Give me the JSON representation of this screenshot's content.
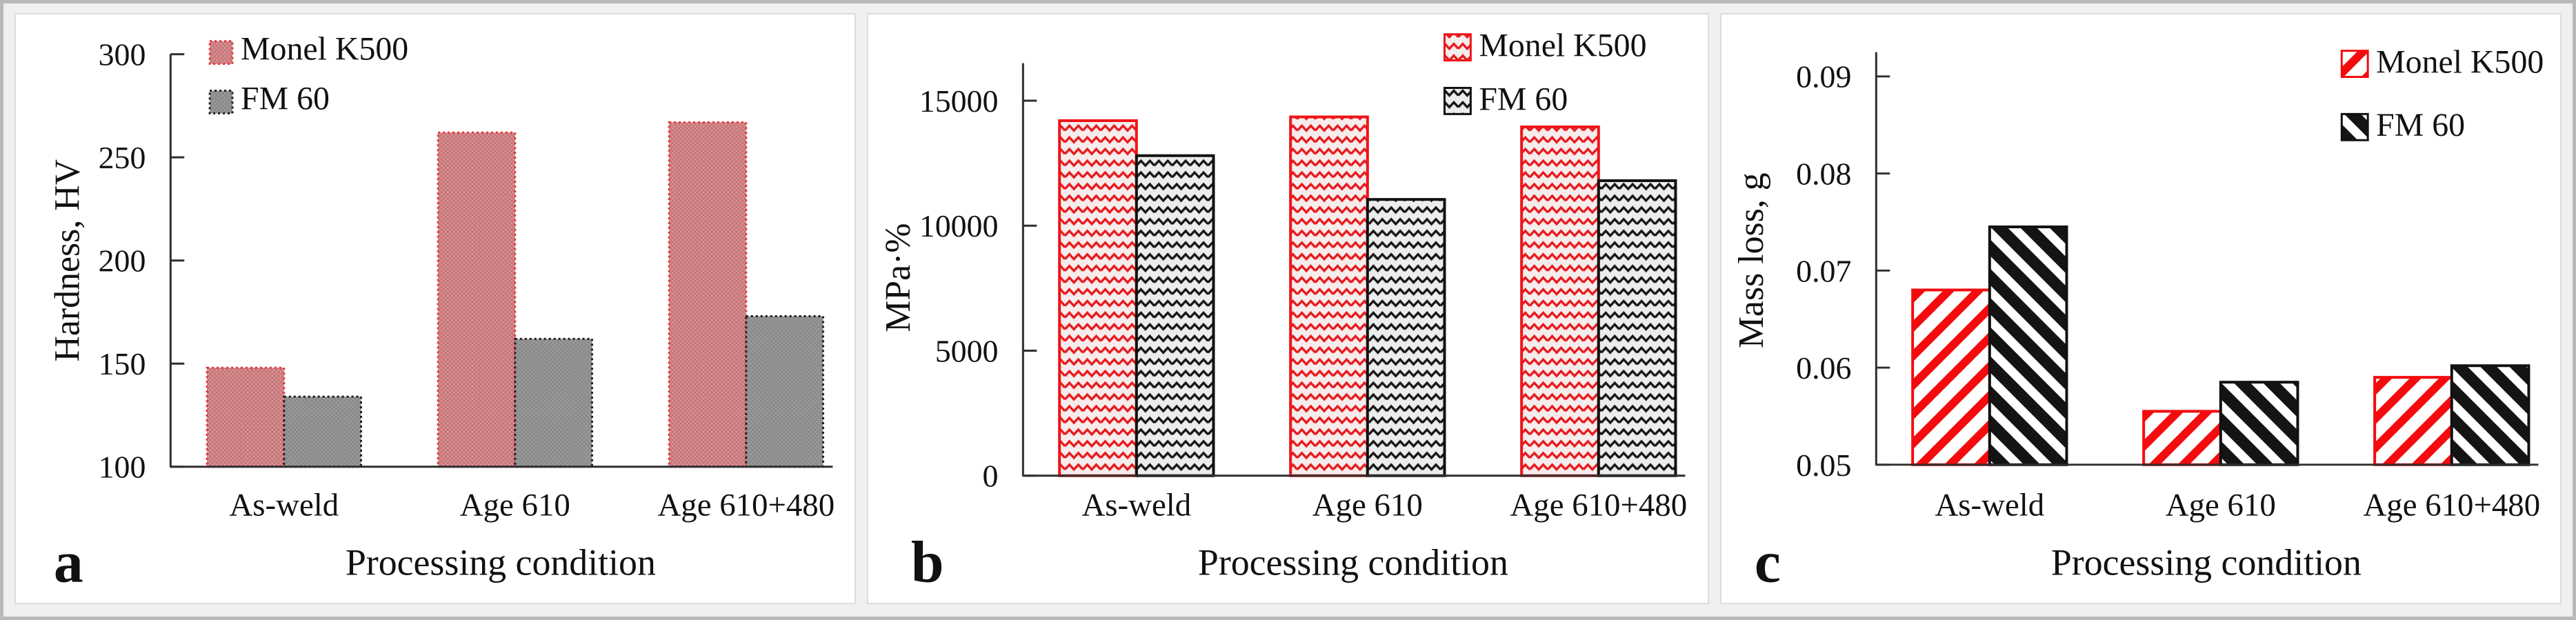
{
  "figure": {
    "description": "Three-panel bar chart figure comparing Monel K500 and FM 60 across processing conditions",
    "background": "#f0f0f0",
    "frame_border": "#b9b9b9"
  },
  "legend": {
    "series": [
      "Monel K500",
      "FM 60"
    ]
  },
  "colors": {
    "monel_red": "#ee1418",
    "monel_rose_fill": "#c9797c",
    "fm60_gray_fill": "#8c8c8c",
    "fm60_black": "#141414",
    "axis": "#2f2f2f"
  },
  "chart_data": [
    {
      "panel_letter": "a",
      "type": "bar",
      "ylabel": "Hardness, HV",
      "xlabel": "Processing  condition",
      "categories": [
        "As-weld",
        "Age 610",
        "Age 610+480"
      ],
      "series": [
        {
          "name": "Monel K500",
          "values": [
            148,
            262,
            267
          ]
        },
        {
          "name": "FM 60",
          "values": [
            134,
            162,
            173
          ]
        }
      ],
      "ylim": [
        100,
        300
      ],
      "yticks": [
        100,
        150,
        200,
        250,
        300
      ],
      "ytick_labels": [
        "100",
        "150",
        "200",
        "250",
        "300"
      ],
      "legend_position": "top-left",
      "bar_fill_style": "dotted texture, rose fill with dotted red border (Monel) / gray fill with dotted black border (FM 60)",
      "grid": false
    },
    {
      "panel_letter": "b",
      "type": "bar",
      "ylabel": "MPa·%",
      "xlabel": "Processing  condition",
      "categories": [
        "As-weld",
        "Age 610",
        "Age 610+480"
      ],
      "series": [
        {
          "name": "Monel K500",
          "values": [
            14200,
            14350,
            13950
          ]
        },
        {
          "name": "FM 60",
          "values": [
            12800,
            11050,
            11800
          ]
        }
      ],
      "ylim": [
        0,
        16500
      ],
      "yticks": [
        0,
        5000,
        10000,
        15000
      ],
      "ytick_labels": [
        "0",
        "5000",
        "10000",
        "15000"
      ],
      "legend_position": "top-right",
      "bar_fill_style": "horizontal zigzag hatch, red on pale pink (Monel) / black on pale gray (FM 60)",
      "grid": false
    },
    {
      "panel_letter": "c",
      "type": "bar",
      "ylabel": "Mass loss, g",
      "xlabel": "Processing  condition",
      "categories": [
        "As-weld",
        "Age 610",
        "Age 610+480"
      ],
      "series": [
        {
          "name": "Monel K500",
          "values": [
            0.068,
            0.0555,
            0.059
          ]
        },
        {
          "name": "FM 60",
          "values": [
            0.0745,
            0.0585,
            0.0602
          ]
        }
      ],
      "ylim": [
        0.05,
        0.0925
      ],
      "yticks": [
        0.05,
        0.06,
        0.07,
        0.08,
        0.09
      ],
      "ytick_labels": [
        "0.05",
        "0.06",
        "0.07",
        "0.08",
        "0.09"
      ],
      "legend_position": "top-right",
      "bar_fill_style": "diagonal stripe hatch, red '/' stripes (Monel) / black '\\' stripes (FM 60)",
      "grid": false
    }
  ]
}
